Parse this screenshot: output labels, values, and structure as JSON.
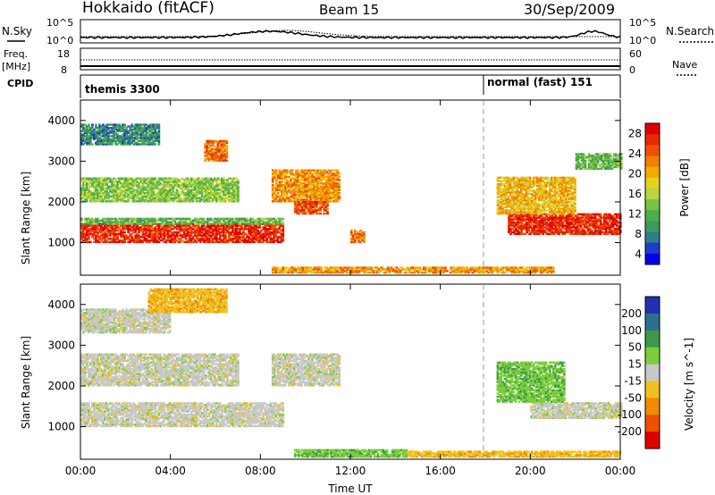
{
  "header": {
    "title": "Hokkaido (fitACF)",
    "beam": "Beam 15",
    "date": "30/Sep/2009"
  },
  "noise_panel": {
    "left_label": "N.Sky",
    "right_label": "N.Search",
    "left_ticks": [
      "10^5",
      "10^0"
    ],
    "right_ticks": [
      "10^5",
      "10^0"
    ]
  },
  "freq_panel": {
    "left_label_1": "Freq.",
    "left_label_2": "[MHz]",
    "right_label": "Nave",
    "left_ticks": [
      "18",
      "8"
    ],
    "right_ticks": [
      "60",
      "0"
    ]
  },
  "cpid_panel": {
    "label": "CPID",
    "modes": [
      {
        "name": "themis 3300",
        "start": "00:00"
      },
      {
        "name": "normal (fast) 151",
        "start": "18:00"
      }
    ]
  },
  "colors": {
    "gs_gray": "#c8c8c8",
    "dashed_line": "#9a9a9a"
  },
  "chart_data": [
    {
      "type": "heatmap",
      "panel": "power",
      "ylabel": "Slant Range [km]",
      "y_ticks": [
        "1000",
        "2000",
        "3000",
        "4000"
      ],
      "ylim": [
        200,
        4500
      ],
      "xlim": [
        "00:00",
        "24:00"
      ],
      "colorbar": {
        "label": "Power [dB]",
        "ticks": [
          "4",
          "8",
          "12",
          "16",
          "20",
          "24",
          "28"
        ],
        "colors": [
          "#0000f0",
          "#1e3cc8",
          "#2e7d8c",
          "#3c9a5a",
          "#4caf4a",
          "#7cc242",
          "#b8d640",
          "#e8d020",
          "#f5a800",
          "#f08000",
          "#ee5000",
          "#e82800",
          "#e00000"
        ]
      },
      "regions": [
        {
          "t0": 0.0,
          "t1": 9.0,
          "r0": 1000,
          "r1": 1450,
          "value": 28
        },
        {
          "t0": 0.0,
          "t1": 9.0,
          "r0": 1450,
          "r1": 1600,
          "value": 12
        },
        {
          "t0": 0.0,
          "t1": 7.0,
          "r0": 2000,
          "r1": 2600,
          "value": 14
        },
        {
          "t0": 0.0,
          "t1": 3.5,
          "r0": 3400,
          "r1": 3900,
          "value": 8
        },
        {
          "t0": 5.5,
          "t1": 6.5,
          "r0": 3000,
          "r1": 3500,
          "value": 24
        },
        {
          "t0": 8.5,
          "t1": 11.5,
          "r0": 2000,
          "r1": 2800,
          "value": 22
        },
        {
          "t0": 9.5,
          "t1": 11.0,
          "r0": 1700,
          "r1": 2000,
          "value": 26
        },
        {
          "t0": 12.0,
          "t1": 12.6,
          "r0": 1000,
          "r1": 1300,
          "value": 24
        },
        {
          "t0": 8.5,
          "t1": 21.0,
          "r0": 250,
          "r1": 400,
          "value": 22
        },
        {
          "t0": 19.0,
          "t1": 24.0,
          "r0": 1200,
          "r1": 1700,
          "value": 28
        },
        {
          "t0": 18.5,
          "t1": 22.0,
          "r0": 1700,
          "r1": 2600,
          "value": 20
        },
        {
          "t0": 22.0,
          "t1": 24.0,
          "r0": 2800,
          "r1": 3200,
          "value": 12
        }
      ]
    },
    {
      "type": "heatmap",
      "panel": "velocity",
      "xlabel": "Time UT",
      "ylabel": "Slant Range [km]",
      "x_ticks": [
        "00:00",
        "04:00",
        "08:00",
        "12:00",
        "16:00",
        "20:00",
        "00:00"
      ],
      "y_ticks": [
        "1000",
        "2000",
        "3000",
        "4000"
      ],
      "ylim": [
        200,
        4500
      ],
      "xlim": [
        "00:00",
        "24:00"
      ],
      "colorbar": {
        "label": "Velocity [m s^-1]",
        "ticks": [
          "200",
          "100",
          "50",
          "15",
          "-15",
          "-50",
          "-100",
          "-200"
        ],
        "colors": [
          "#2030b0",
          "#2e6e8e",
          "#3e9a4a",
          "#7ccc3c",
          "#c8c8c8",
          "#f0c020",
          "#f08c00",
          "#ee5000",
          "#e00000"
        ]
      },
      "regions": [
        {
          "t0": 0.0,
          "t1": 9.0,
          "r0": 1000,
          "r1": 1600,
          "value": 0
        },
        {
          "t0": 0.0,
          "t1": 7.0,
          "r0": 2000,
          "r1": 2800,
          "value": 0
        },
        {
          "t0": 0.0,
          "t1": 4.0,
          "r0": 3300,
          "r1": 3900,
          "value": 0
        },
        {
          "t0": 3.0,
          "t1": 6.5,
          "r0": 3800,
          "r1": 4400,
          "value": -40
        },
        {
          "t0": 8.5,
          "t1": 11.5,
          "r0": 2000,
          "r1": 2800,
          "value": 0
        },
        {
          "t0": 9.5,
          "t1": 14.5,
          "r0": 250,
          "r1": 450,
          "value": 40
        },
        {
          "t0": 14.5,
          "t1": 24.0,
          "r0": 250,
          "r1": 400,
          "value": -40
        },
        {
          "t0": 20.0,
          "t1": 24.0,
          "r0": 1200,
          "r1": 1600,
          "value": 0
        },
        {
          "t0": 18.5,
          "t1": 21.5,
          "r0": 1600,
          "r1": 2600,
          "value": 40
        }
      ]
    }
  ]
}
